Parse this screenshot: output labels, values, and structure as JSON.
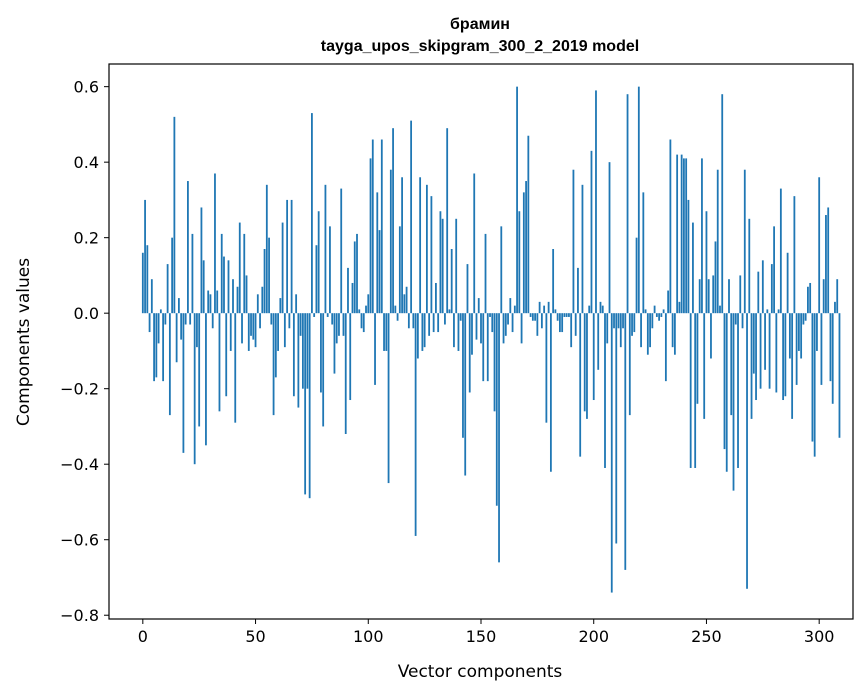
{
  "chart_data": {
    "type": "bar",
    "title_line1": "брамин",
    "title_line2": "tayga_upos_skipgram_300_2_2019 model",
    "xlabel": "Vector components",
    "ylabel": "Components values",
    "xlim": [
      -15,
      315
    ],
    "ylim": [
      -0.81,
      0.66
    ],
    "xticks": [
      0,
      50,
      100,
      150,
      200,
      250,
      300
    ],
    "xtick_labels": [
      "0",
      "50",
      "100",
      "150",
      "200",
      "250",
      "300"
    ],
    "yticks": [
      -0.8,
      -0.6,
      -0.4,
      -0.2,
      0.0,
      0.2,
      0.4,
      0.6
    ],
    "ytick_labels": [
      "−0.8",
      "−0.6",
      "−0.4",
      "−0.2",
      "0.0",
      "0.2",
      "0.4",
      "0.6"
    ],
    "grid": false,
    "bar_color": "#1f77b4",
    "values": [
      0.16,
      0.3,
      0.18,
      -0.05,
      0.09,
      -0.18,
      -0.17,
      -0.08,
      0.01,
      -0.18,
      -0.03,
      0.13,
      -0.27,
      0.2,
      0.52,
      -0.13,
      0.04,
      -0.07,
      -0.37,
      -0.03,
      0.35,
      -0.03,
      0.21,
      -0.4,
      -0.09,
      -0.3,
      0.28,
      0.14,
      -0.35,
      0.06,
      0.05,
      -0.04,
      0.37,
      0.06,
      -0.26,
      0.21,
      0.15,
      -0.22,
      0.14,
      -0.1,
      0.09,
      -0.29,
      0.07,
      0.24,
      -0.08,
      0.21,
      0.1,
      -0.1,
      -0.06,
      -0.07,
      -0.09,
      0.05,
      -0.04,
      0.07,
      0.17,
      0.34,
      0.2,
      -0.03,
      -0.27,
      -0.17,
      -0.1,
      0.04,
      0.24,
      -0.09,
      0.3,
      -0.04,
      0.3,
      -0.22,
      0.05,
      -0.25,
      -0.06,
      -0.2,
      -0.48,
      -0.2,
      -0.49,
      0.53,
      -0.01,
      0.18,
      0.27,
      -0.21,
      -0.3,
      0.34,
      -0.01,
      0.23,
      -0.03,
      -0.16,
      -0.08,
      -0.06,
      0.33,
      -0.06,
      -0.32,
      0.12,
      -0.23,
      0.08,
      0.19,
      0.21,
      0.01,
      -0.04,
      -0.05,
      0.02,
      0.05,
      0.41,
      0.46,
      -0.19,
      0.32,
      0.22,
      0.46,
      -0.1,
      -0.1,
      -0.45,
      0.38,
      0.49,
      0.02,
      -0.02,
      0.23,
      0.36,
      0.05,
      0.07,
      -0.04,
      0.51,
      -0.04,
      -0.59,
      -0.12,
      0.36,
      -0.1,
      -0.09,
      0.34,
      -0.06,
      0.31,
      -0.05,
      0.08,
      -0.05,
      0.27,
      0.25,
      -0.03,
      0.49,
      0.01,
      0.17,
      -0.09,
      0.25,
      -0.1,
      -0.02,
      -0.33,
      -0.43,
      0.13,
      -0.21,
      -0.11,
      0.37,
      -0.07,
      0.04,
      -0.08,
      -0.18,
      0.21,
      -0.18,
      -0.01,
      -0.05,
      -0.26,
      -0.51,
      -0.66,
      0.23,
      -0.08,
      -0.06,
      -0.03,
      0.04,
      -0.05,
      0.02,
      0.6,
      0.27,
      -0.08,
      0.32,
      0.35,
      0.47,
      -0.01,
      -0.02,
      -0.02,
      -0.06,
      0.03,
      -0.04,
      0.02,
      -0.29,
      0.03,
      -0.42,
      0.17,
      0.01,
      -0.02,
      -0.05,
      -0.05,
      -0.01,
      -0.01,
      -0.01,
      -0.09,
      0.38,
      -0.06,
      0.12,
      -0.38,
      0.34,
      -0.26,
      -0.28,
      0.02,
      0.43,
      -0.23,
      0.59,
      -0.15,
      0.03,
      0.02,
      -0.41,
      -0.08,
      0.4,
      -0.74,
      -0.04,
      -0.61,
      -0.04,
      -0.09,
      -0.04,
      -0.68,
      0.58,
      -0.27,
      -0.06,
      -0.05,
      0.2,
      0.6,
      -0.09,
      0.32,
      0.01,
      -0.11,
      -0.09,
      -0.04,
      0.02,
      -0.01,
      -0.02,
      -0.01,
      0.01,
      -0.18,
      0.06,
      0.46,
      -0.09,
      -0.11,
      0.42,
      0.03,
      0.42,
      0.41,
      0.41,
      0.3,
      -0.41,
      0.24,
      -0.41,
      -0.24,
      0.09,
      0.41,
      -0.28,
      0.27,
      0.09,
      -0.12,
      0.1,
      0.19,
      0.38,
      0.02,
      0.58,
      -0.36,
      -0.42,
      0.09,
      -0.27,
      -0.47,
      -0.03,
      -0.41,
      0.1,
      -0.04,
      0.38,
      -0.73,
      0.25,
      -0.28,
      -0.16,
      -0.23,
      0.11,
      -0.2,
      0.14,
      -0.15,
      0.01,
      -0.2,
      0.13,
      0.23,
      -0.21,
      0.01,
      0.33,
      -0.23,
      -0.22,
      0.16,
      -0.12,
      -0.28,
      0.31,
      -0.19,
      -0.1,
      -0.12,
      -0.03,
      -0.02,
      0.07,
      0.08,
      -0.34,
      -0.38,
      -0.1,
      0.36,
      -0.19,
      0.09,
      0.26,
      0.28,
      -0.18,
      -0.24,
      0.03,
      0.09,
      -0.33
    ]
  }
}
